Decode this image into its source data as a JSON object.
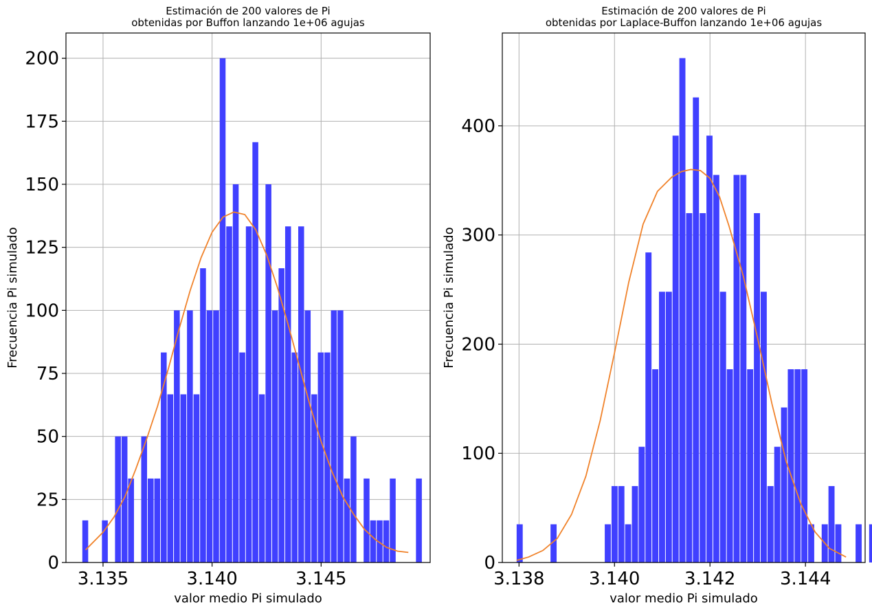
{
  "chart_data": [
    {
      "type": "bar",
      "title_line1": "Estimación de 200 valores de Pi",
      "title_line2": "obtenidas por Buffon lanzando 1e+06 agujas",
      "xlabel": "valor medio Pi simulado",
      "ylabel": "Frecuencia Pi simulado",
      "xlim": [
        3.1333,
        3.15
      ],
      "ylim": [
        0,
        210
      ],
      "xticks": [
        3.135,
        3.14,
        3.145
      ],
      "xtick_labels": [
        "3.135",
        "3.140",
        "3.145"
      ],
      "yticks": [
        0,
        25,
        50,
        75,
        100,
        125,
        150,
        175,
        200
      ],
      "ytick_labels": [
        "0",
        "25",
        "50",
        "75",
        "100",
        "125",
        "150",
        "175",
        "200"
      ],
      "grid": true,
      "bar_color": "#4040ff",
      "curve_color": "#f0822a",
      "bin_start": 3.13405,
      "bin_width": 0.0003,
      "values": [
        16.7,
        0,
        0,
        16.7,
        0,
        50,
        50,
        33.3,
        0,
        50,
        33.3,
        33.3,
        83.3,
        66.7,
        100,
        66.7,
        100,
        66.7,
        116.7,
        100,
        100,
        200,
        133.3,
        150,
        83.3,
        133.3,
        166.7,
        66.7,
        150,
        100,
        116.7,
        133.3,
        83.3,
        133.3,
        100,
        66.7,
        83.3,
        83.3,
        100,
        100,
        33.3,
        50,
        0,
        33.3,
        16.7,
        16.7,
        16.7,
        33.3,
        0,
        0,
        0,
        33.3
      ],
      "curve_x": [
        3.1342,
        3.135,
        3.1355,
        3.136,
        3.1365,
        3.137,
        3.1375,
        3.138,
        3.1385,
        3.139,
        3.1395,
        3.14,
        3.1405,
        3.141,
        3.1415,
        3.142,
        3.1425,
        3.143,
        3.1435,
        3.144,
        3.1445,
        3.145,
        3.1455,
        3.146,
        3.1465,
        3.147,
        3.1475,
        3.148,
        3.1485,
        3.149
      ],
      "curve_y": [
        5,
        12,
        18,
        26,
        37,
        49,
        62,
        77,
        93,
        108,
        121,
        131,
        137,
        139,
        138,
        132,
        122,
        109,
        94,
        78,
        62,
        48,
        36,
        26,
        19,
        13,
        9,
        6,
        4.5,
        4
      ]
    },
    {
      "type": "bar",
      "title_line1": "Estimación de 200 valores de Pi",
      "title_line2": "obtenidas por Laplace-Buffon lanzando 1e+06 agujas",
      "xlabel": "valor medio Pi simulado",
      "ylabel": "Frecuencia Pi simulado",
      "xlim": [
        3.13765,
        3.14525
      ],
      "ylim": [
        0,
        485
      ],
      "xticks": [
        3.138,
        3.14,
        3.142,
        3.144
      ],
      "xtick_labels": [
        "3.138",
        "3.140",
        "3.142",
        "3.144"
      ],
      "yticks": [
        0,
        100,
        200,
        300,
        400
      ],
      "ytick_labels": [
        "0",
        "100",
        "200",
        "300",
        "400"
      ],
      "grid": true,
      "bar_color": "#4040ff",
      "curve_color": "#f0822a",
      "bin_start": 3.13795,
      "bin_width": 0.000142,
      "values": [
        35,
        0,
        0,
        0,
        0,
        35,
        0,
        0,
        0,
        0,
        0,
        0,
        0,
        35,
        70,
        70,
        35,
        70,
        106,
        284,
        177,
        248,
        248,
        391,
        462,
        320,
        426,
        320,
        391,
        355,
        248,
        177,
        355,
        355,
        177,
        320,
        248,
        70,
        106,
        142,
        177,
        177,
        177,
        35,
        0,
        35,
        70,
        35,
        0,
        0,
        35,
        0,
        35
      ],
      "curve_x": [
        3.13795,
        3.1382,
        3.1385,
        3.1388,
        3.1391,
        3.1394,
        3.1397,
        3.14,
        3.1403,
        3.1406,
        3.1409,
        3.1412,
        3.1414,
        3.1416,
        3.1418,
        3.142,
        3.1422,
        3.1424,
        3.1427,
        3.143,
        3.1433,
        3.1436,
        3.1439,
        3.1442,
        3.1445,
        3.14485
      ],
      "curve_y": [
        2,
        5,
        11,
        22,
        44,
        79,
        130,
        192,
        257,
        310,
        340,
        353,
        358,
        360,
        359,
        352,
        335,
        308,
        262,
        205,
        145,
        92,
        54,
        28,
        13,
        5
      ]
    }
  ]
}
